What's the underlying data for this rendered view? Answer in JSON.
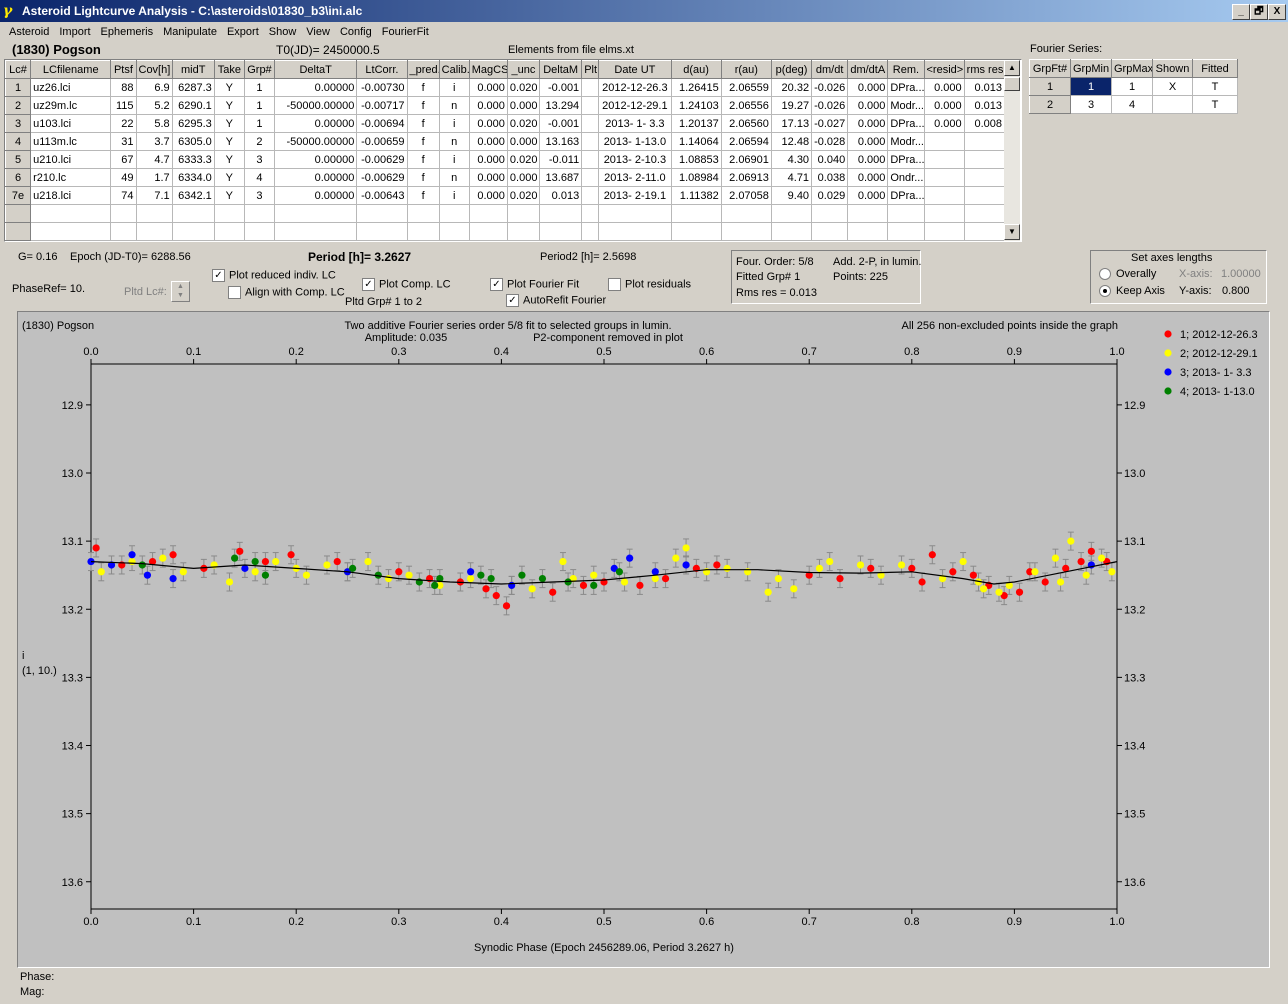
{
  "window": {
    "title": "Asteroid Lightcurve Analysis - C:\\asteroids\\01830_b3\\ini.alc",
    "min": "_",
    "restore": "🗗",
    "close": "X"
  },
  "menu": [
    "Asteroid",
    "Import",
    "Ephemeris",
    "Manipulate",
    "Export",
    "Show",
    "View",
    "Config",
    "FourierFit"
  ],
  "header": {
    "asteroid": "(1830) Pogson",
    "t0": "T0(JD)= 2450000.5",
    "elements": "Elements from file elms.xt",
    "fourier_series": "Fourier Series:"
  },
  "lc_table": {
    "columns": [
      "Lc#",
      "LCfilename",
      "Ptsf",
      "Cov[h]",
      "midT",
      "Take",
      "Grp#",
      "DeltaT",
      "LtCorr.",
      "_pred.",
      "Calib.",
      "MagCS",
      "_unc",
      "DeltaM",
      "Plt",
      "Date UT",
      "d(au)",
      "r(au)",
      "p(deg)",
      "dm/dt",
      "dm/dtA",
      "Rem.",
      "<resid>",
      "rms res"
    ],
    "rows": [
      [
        "1",
        "uz26.lci",
        "88",
        "6.9",
        "6287.3",
        "Y",
        "1",
        "0.00000",
        "-0.00730",
        "f",
        "i",
        "0.000",
        "0.020",
        "-0.001",
        "",
        "2012-12-26.3",
        "1.26415",
        "2.06559",
        "20.32",
        "-0.026",
        "0.000",
        "DPra...",
        "0.000",
        "0.013"
      ],
      [
        "2",
        "uz29m.lc",
        "115",
        "5.2",
        "6290.1",
        "Y",
        "1",
        "-50000.00000",
        "-0.00717",
        "f",
        "n",
        "0.000",
        "0.000",
        "13.294",
        "",
        "2012-12-29.1",
        "1.24103",
        "2.06556",
        "19.27",
        "-0.026",
        "0.000",
        "Modr...",
        "0.000",
        "0.013"
      ],
      [
        "3",
        "u103.lci",
        "22",
        "5.8",
        "6295.3",
        "Y",
        "1",
        "0.00000",
        "-0.00694",
        "f",
        "i",
        "0.000",
        "0.020",
        "-0.001",
        "",
        "2013- 1- 3.3",
        "1.20137",
        "2.06560",
        "17.13",
        "-0.027",
        "0.000",
        "DPra...",
        "0.000",
        "0.008"
      ],
      [
        "4",
        "u113m.lc",
        "31",
        "3.7",
        "6305.0",
        "Y",
        "2",
        "-50000.00000",
        "-0.00659",
        "f",
        "n",
        "0.000",
        "0.000",
        "13.163",
        "",
        "2013- 1-13.0",
        "1.14064",
        "2.06594",
        "12.48",
        "-0.028",
        "0.000",
        "Modr...",
        "",
        ""
      ],
      [
        "5",
        "u210.lci",
        "67",
        "4.7",
        "6333.3",
        "Y",
        "3",
        "0.00000",
        "-0.00629",
        "f",
        "i",
        "0.000",
        "0.020",
        "-0.011",
        "",
        "2013- 2-10.3",
        "1.08853",
        "2.06901",
        "4.30",
        "0.040",
        "0.000",
        "DPra...",
        "",
        ""
      ],
      [
        "6",
        "r210.lc",
        "49",
        "1.7",
        "6334.0",
        "Y",
        "4",
        "0.00000",
        "-0.00629",
        "f",
        "n",
        "0.000",
        "0.000",
        "13.687",
        "",
        "2013- 2-11.0",
        "1.08984",
        "2.06913",
        "4.71",
        "0.038",
        "0.000",
        "Ondr...",
        "",
        ""
      ],
      [
        "7e",
        "u218.lci",
        "74",
        "7.1",
        "6342.1",
        "Y",
        "3",
        "0.00000",
        "-0.00643",
        "f",
        "i",
        "0.000",
        "0.020",
        "0.013",
        "",
        "2013- 2-19.1",
        "1.11382",
        "2.07058",
        "9.40",
        "0.029",
        "0.000",
        "DPra...",
        "",
        ""
      ]
    ]
  },
  "fourier_table": {
    "columns": [
      "GrpFt#",
      "GrpMin",
      "GrpMax",
      "Shown",
      "Fitted"
    ],
    "rows": [
      [
        "1",
        "1",
        "1",
        "X",
        "T"
      ],
      [
        "2",
        "3",
        "4",
        "",
        "T"
      ]
    ]
  },
  "controls": {
    "g": "G= 0.16",
    "epoch": "Epoch (JD-T0)= 6288.56",
    "period": "Period [h]= 3.2627",
    "period2": "Period2 [h]= 2.5698",
    "phaseref": "PhaseRef= 10.",
    "pltd_lc": "Pltd Lc#:",
    "plot_reduced": "Plot reduced indiv. LC",
    "align_comp": "Align with Comp. LC",
    "plot_comp": "Plot Comp. LC",
    "pltd_grp": "Pltd Grp#  1   to   2",
    "plot_fourier": "Plot Fourier Fit",
    "autorefit": "AutoRefit Fourier",
    "plot_residuals": "Plot residuals",
    "four_order": "Four. Order:  5/8",
    "add2p": "Add. 2-P, in lumin.",
    "fitted_grp": "Fitted Grp# 1",
    "points": "Points: 225",
    "rms_res": "Rms res     = 0.013",
    "axes_title": "Set axes lengths",
    "overally": "Overally",
    "keep_axis": "Keep Axis",
    "xaxis_label": "X-axis:",
    "xaxis_val": "1.00000",
    "yaxis_label": "Y-axis:",
    "yaxis_val": "0.800"
  },
  "footer": {
    "phase": "Phase:",
    "mag": "Mag:"
  },
  "chart_data": {
    "type": "scatter",
    "corner_label": "(1830) Pogson",
    "title_line1": "Two additive Fourier series order 5/8 fit to selected groups in lumin.",
    "title_line2_a": "Amplitude: 0.035",
    "title_line2_b": "P2-component removed in plot",
    "note": "All 256 non-excluded points inside the graph",
    "xlabel": "Synodic Phase (Epoch 2456289.06, Period 3.2627 h)",
    "ylabel_1": "i",
    "ylabel_2": "(1, 10.)",
    "xlim": [
      0.0,
      1.0
    ],
    "ylim": [
      13.64,
      12.84
    ],
    "x_ticks": [
      "0.0",
      "0.1",
      "0.2",
      "0.3",
      "0.4",
      "0.5",
      "0.6",
      "0.7",
      "0.8",
      "0.9",
      "1.0"
    ],
    "y_ticks": [
      "12.9",
      "13.0",
      "13.1",
      "13.2",
      "13.3",
      "13.4",
      "13.5",
      "13.6"
    ],
    "grid": false,
    "legend_position": "right",
    "colors": {
      "plot_bg": "#c0c0c0",
      "fit_line": "#000000",
      "error_bar": "#8a8a8a"
    },
    "series": [
      {
        "name": "1; 2012-12-26.3",
        "color": "#ff0000",
        "points": [
          [
            0.005,
            13.11
          ],
          [
            0.03,
            13.135
          ],
          [
            0.06,
            13.13
          ],
          [
            0.08,
            13.12
          ],
          [
            0.11,
            13.14
          ],
          [
            0.145,
            13.115
          ],
          [
            0.17,
            13.13
          ],
          [
            0.195,
            13.12
          ],
          [
            0.24,
            13.13
          ],
          [
            0.3,
            13.145
          ],
          [
            0.33,
            13.155
          ],
          [
            0.36,
            13.16
          ],
          [
            0.385,
            13.17
          ],
          [
            0.395,
            13.18
          ],
          [
            0.405,
            13.195
          ],
          [
            0.45,
            13.175
          ],
          [
            0.48,
            13.165
          ],
          [
            0.5,
            13.16
          ],
          [
            0.535,
            13.165
          ],
          [
            0.56,
            13.155
          ],
          [
            0.59,
            13.14
          ],
          [
            0.61,
            13.135
          ],
          [
            0.7,
            13.15
          ],
          [
            0.73,
            13.155
          ],
          [
            0.76,
            13.14
          ],
          [
            0.8,
            13.14
          ],
          [
            0.81,
            13.16
          ],
          [
            0.82,
            13.12
          ],
          [
            0.84,
            13.145
          ],
          [
            0.86,
            13.15
          ],
          [
            0.875,
            13.165
          ],
          [
            0.89,
            13.18
          ],
          [
            0.905,
            13.175
          ],
          [
            0.915,
            13.145
          ],
          [
            0.93,
            13.16
          ],
          [
            0.95,
            13.14
          ],
          [
            0.965,
            13.13
          ],
          [
            0.975,
            13.115
          ],
          [
            0.99,
            13.13
          ]
        ]
      },
      {
        "name": "2; 2012-12-29.1",
        "color": "#ffff00",
        "points": [
          [
            0.01,
            13.145
          ],
          [
            0.04,
            13.13
          ],
          [
            0.07,
            13.125
          ],
          [
            0.09,
            13.145
          ],
          [
            0.12,
            13.135
          ],
          [
            0.135,
            13.16
          ],
          [
            0.16,
            13.145
          ],
          [
            0.18,
            13.13
          ],
          [
            0.2,
            13.14
          ],
          [
            0.21,
            13.15
          ],
          [
            0.23,
            13.135
          ],
          [
            0.25,
            13.145
          ],
          [
            0.27,
            13.13
          ],
          [
            0.29,
            13.155
          ],
          [
            0.31,
            13.15
          ],
          [
            0.34,
            13.165
          ],
          [
            0.37,
            13.155
          ],
          [
            0.41,
            13.165
          ],
          [
            0.43,
            13.17
          ],
          [
            0.46,
            13.13
          ],
          [
            0.47,
            13.155
          ],
          [
            0.49,
            13.15
          ],
          [
            0.52,
            13.16
          ],
          [
            0.55,
            13.155
          ],
          [
            0.57,
            13.125
          ],
          [
            0.58,
            13.11
          ],
          [
            0.6,
            13.145
          ],
          [
            0.62,
            13.14
          ],
          [
            0.64,
            13.145
          ],
          [
            0.66,
            13.175
          ],
          [
            0.67,
            13.155
          ],
          [
            0.685,
            13.17
          ],
          [
            0.71,
            13.14
          ],
          [
            0.72,
            13.13
          ],
          [
            0.75,
            13.135
          ],
          [
            0.77,
            13.15
          ],
          [
            0.79,
            13.135
          ],
          [
            0.83,
            13.155
          ],
          [
            0.85,
            13.13
          ],
          [
            0.87,
            13.17
          ],
          [
            0.885,
            13.175
          ],
          [
            0.895,
            13.165
          ],
          [
            0.92,
            13.145
          ],
          [
            0.94,
            13.125
          ],
          [
            0.955,
            13.1
          ],
          [
            0.97,
            13.15
          ],
          [
            0.985,
            13.125
          ],
          [
            0.995,
            13.145
          ],
          [
            0.945,
            13.16
          ],
          [
            0.865,
            13.16
          ]
        ]
      },
      {
        "name": "3; 2013- 1- 3.3",
        "color": "#0000ff",
        "points": [
          [
            0.0,
            13.13
          ],
          [
            0.02,
            13.135
          ],
          [
            0.04,
            13.12
          ],
          [
            0.055,
            13.15
          ],
          [
            0.08,
            13.155
          ],
          [
            0.15,
            13.14
          ],
          [
            0.25,
            13.145
          ],
          [
            0.37,
            13.145
          ],
          [
            0.41,
            13.165
          ],
          [
            0.51,
            13.14
          ],
          [
            0.525,
            13.125
          ],
          [
            0.55,
            13.145
          ],
          [
            0.58,
            13.135
          ],
          [
            0.975,
            13.135
          ]
        ]
      },
      {
        "name": "4; 2013- 1-13.0",
        "color": "#008000",
        "points": [
          [
            0.05,
            13.135
          ],
          [
            0.14,
            13.125
          ],
          [
            0.16,
            13.13
          ],
          [
            0.17,
            13.15
          ],
          [
            0.255,
            13.14
          ],
          [
            0.28,
            13.15
          ],
          [
            0.32,
            13.16
          ],
          [
            0.335,
            13.165
          ],
          [
            0.34,
            13.155
          ],
          [
            0.38,
            13.15
          ],
          [
            0.39,
            13.155
          ],
          [
            0.42,
            13.15
          ],
          [
            0.44,
            13.155
          ],
          [
            0.465,
            13.16
          ],
          [
            0.49,
            13.165
          ],
          [
            0.515,
            13.145
          ]
        ]
      }
    ],
    "fit_curve": [
      [
        0.0,
        13.13
      ],
      [
        0.05,
        13.133
      ],
      [
        0.1,
        13.14
      ],
      [
        0.15,
        13.135
      ],
      [
        0.2,
        13.14
      ],
      [
        0.25,
        13.145
      ],
      [
        0.3,
        13.155
      ],
      [
        0.35,
        13.16
      ],
      [
        0.4,
        13.163
      ],
      [
        0.45,
        13.16
      ],
      [
        0.5,
        13.157
      ],
      [
        0.55,
        13.15
      ],
      [
        0.6,
        13.142
      ],
      [
        0.65,
        13.142
      ],
      [
        0.7,
        13.146
      ],
      [
        0.75,
        13.147
      ],
      [
        0.8,
        13.145
      ],
      [
        0.85,
        13.155
      ],
      [
        0.88,
        13.163
      ],
      [
        0.9,
        13.16
      ],
      [
        0.95,
        13.145
      ],
      [
        1.0,
        13.13
      ]
    ]
  }
}
